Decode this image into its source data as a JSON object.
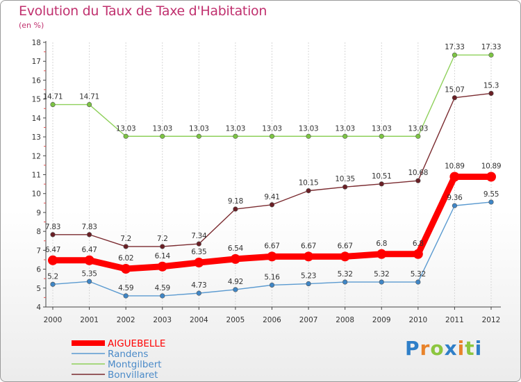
{
  "header": {
    "title": "Evolution du Taux de Taxe d'Habitation",
    "subtitle": "(en %)"
  },
  "logo": {
    "text": "Proxiti",
    "letter_colors": [
      "#2f7fc8",
      "#e8832a",
      "#8cc63f",
      "#2f7fc8",
      "#e8832a",
      "#8cc63f",
      "#2f7fc8"
    ]
  },
  "chart_data": {
    "type": "line",
    "x": [
      "2000",
      "2001",
      "2002",
      "2003",
      "2004",
      "2005",
      "2006",
      "2007",
      "2008",
      "2009",
      "2010",
      "2011",
      "2012"
    ],
    "ylim": [
      4,
      18
    ],
    "yticks": [
      4,
      5,
      6,
      7,
      8,
      9,
      10,
      11,
      12,
      13,
      14,
      15,
      16,
      17,
      18
    ],
    "grid": "vertical",
    "legend_position": "bottom-left",
    "series": [
      {
        "name": "Montgilbert",
        "color": "#8ed05a",
        "point_color": "#7cc443",
        "emphasis": false,
        "values": [
          14.71,
          14.71,
          13.03,
          13.03,
          13.03,
          13.03,
          13.03,
          13.03,
          13.03,
          13.03,
          13.03,
          17.33,
          17.33
        ],
        "labels": [
          "14.71",
          "14.71",
          "13.03",
          "13.03",
          "13.03",
          "13.03",
          "13.03",
          "13.03",
          "13.03",
          "13.03",
          "13.03",
          "17.33",
          "17.33"
        ]
      },
      {
        "name": "Bonvillaret",
        "color": "#7a2a2f",
        "point_color": "#6a1f25",
        "emphasis": false,
        "values": [
          7.83,
          7.83,
          7.2,
          7.2,
          7.34,
          9.18,
          9.41,
          10.15,
          10.35,
          10.51,
          10.68,
          15.07,
          15.3
        ],
        "labels": [
          "7.83",
          "7.83",
          "7.2",
          "7.2",
          "7.34",
          "9.18",
          "9.41",
          "10.15",
          "10.35",
          "10.51",
          "10.68",
          "15.07",
          "15.3"
        ]
      },
      {
        "name": "Randens",
        "color": "#5a9ad0",
        "point_color": "#3f86c6",
        "emphasis": false,
        "values": [
          5.2,
          5.35,
          4.59,
          4.59,
          4.73,
          4.92,
          5.16,
          5.23,
          5.32,
          5.32,
          5.32,
          9.36,
          9.55
        ],
        "labels": [
          "5.2",
          "5.35",
          "4.59",
          "4.59",
          "4.73",
          "4.92",
          "5.16",
          "5.23",
          "5.32",
          "5.32",
          "5.32",
          "9.36",
          "9.55"
        ]
      },
      {
        "name": "AIGUEBELLE",
        "color": "#ff0000",
        "point_color": "#ff0000",
        "emphasis": true,
        "values": [
          6.47,
          6.47,
          6.02,
          6.14,
          6.35,
          6.54,
          6.67,
          6.67,
          6.67,
          6.8,
          6.8,
          10.89,
          10.89
        ],
        "labels": [
          "6.47",
          "6.47",
          "6.02",
          "6.14",
          "6.35",
          "6.54",
          "6.67",
          "6.67",
          "6.67",
          "6.8",
          "6.8",
          "10.89",
          "10.89"
        ]
      }
    ],
    "legend": [
      {
        "name": "AIGUEBELLE",
        "color": "#ff0000",
        "text_color": "#ff0000",
        "thick": true
      },
      {
        "name": "Randens",
        "color": "#5a9ad0",
        "text_color": "#4a8ac8",
        "thick": false
      },
      {
        "name": "Montgilbert",
        "color": "#8ed05a",
        "text_color": "#4a8ac8",
        "thick": false
      },
      {
        "name": "Bonvillaret",
        "color": "#7a2a2f",
        "text_color": "#4a8ac8",
        "thick": false
      }
    ]
  }
}
